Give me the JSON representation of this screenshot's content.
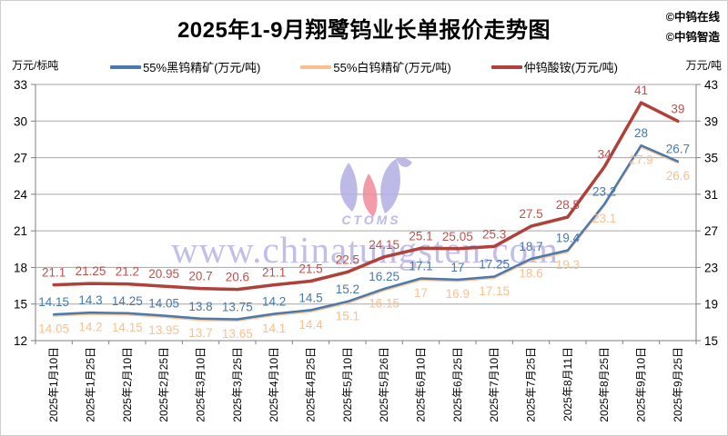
{
  "title": "2025年1-9月翔鹭钨业长单报价走势图",
  "credits": [
    "©中钨在线",
    "©中钨智造"
  ],
  "watermark": {
    "url_text": "www.chinatungsten.com",
    "logo_text": "CTOMS"
  },
  "chart_data": {
    "type": "line",
    "title": "2025年1-9月翔鹭钨业长单报价走势图",
    "grid": true,
    "legend_position": "top",
    "categories": [
      "2025年1月10日",
      "2025年1月25日",
      "2025年2月10日",
      "2025年2月25日",
      "2025年3月10日",
      "2025年3月25日",
      "2025年4月10日",
      "2025年4月25日",
      "2025年5月10日",
      "2025年5月26日",
      "2025年6月10日",
      "2025年6月25日",
      "2025年7月10日",
      "2025年7月25日",
      "2025年8月11日",
      "2025年8月25日",
      "2025年9月10日",
      "2025年9月25日"
    ],
    "left_axis": {
      "label": "万元/标吨",
      "min": 12,
      "max": 33,
      "ticks": [
        12,
        15,
        18,
        21,
        24,
        27,
        30,
        33
      ]
    },
    "right_axis": {
      "label": "万元/吨",
      "min": 15,
      "max": 43,
      "ticks": [
        15,
        19,
        23,
        27,
        31,
        35,
        39,
        43
      ]
    },
    "series": [
      {
        "name": "55%白钨精矿(万元/吨)",
        "axis": "left",
        "color": "#FAC08F",
        "label_color": "#FAC08F",
        "line_width": 2.5,
        "label_side": "below",
        "values": [
          14.05,
          14.2,
          14.15,
          13.95,
          13.7,
          13.65,
          14.1,
          14.4,
          15.1,
          16.15,
          17,
          16.9,
          17.15,
          18.6,
          19.3,
          23.1,
          27.9,
          26.6
        ]
      },
      {
        "name": "55%黑钨精矿(万元/吨)",
        "axis": "left",
        "color": "#4B79AC",
        "label_color": "#4778AC",
        "line_width": 2.5,
        "label_side": "above",
        "values": [
          14.15,
          14.3,
          14.25,
          14.05,
          13.8,
          13.75,
          14.2,
          14.5,
          15.2,
          16.25,
          17.1,
          17,
          17.25,
          18.7,
          19.4,
          23.2,
          28,
          26.7
        ]
      },
      {
        "name": "仲钨酸铵(万元/吨)",
        "axis": "right",
        "color": "#B0403A",
        "label_color": "#C0504D",
        "line_width": 3.5,
        "label_side": "above",
        "values": [
          21.1,
          21.25,
          21.2,
          20.95,
          20.7,
          20.6,
          21.1,
          21.5,
          22.5,
          24.15,
          25.1,
          25.05,
          25.3,
          27.5,
          28.5,
          34,
          41,
          39
        ]
      }
    ],
    "legend_order": [
      1,
      0,
      2
    ],
    "colors": {
      "gridline": "#A6A6A6",
      "axis_line": "#7F7F7F",
      "tick_text": "#000000",
      "watermark": "#B3AEE3",
      "watermark_pink": "#F08A9B"
    }
  }
}
